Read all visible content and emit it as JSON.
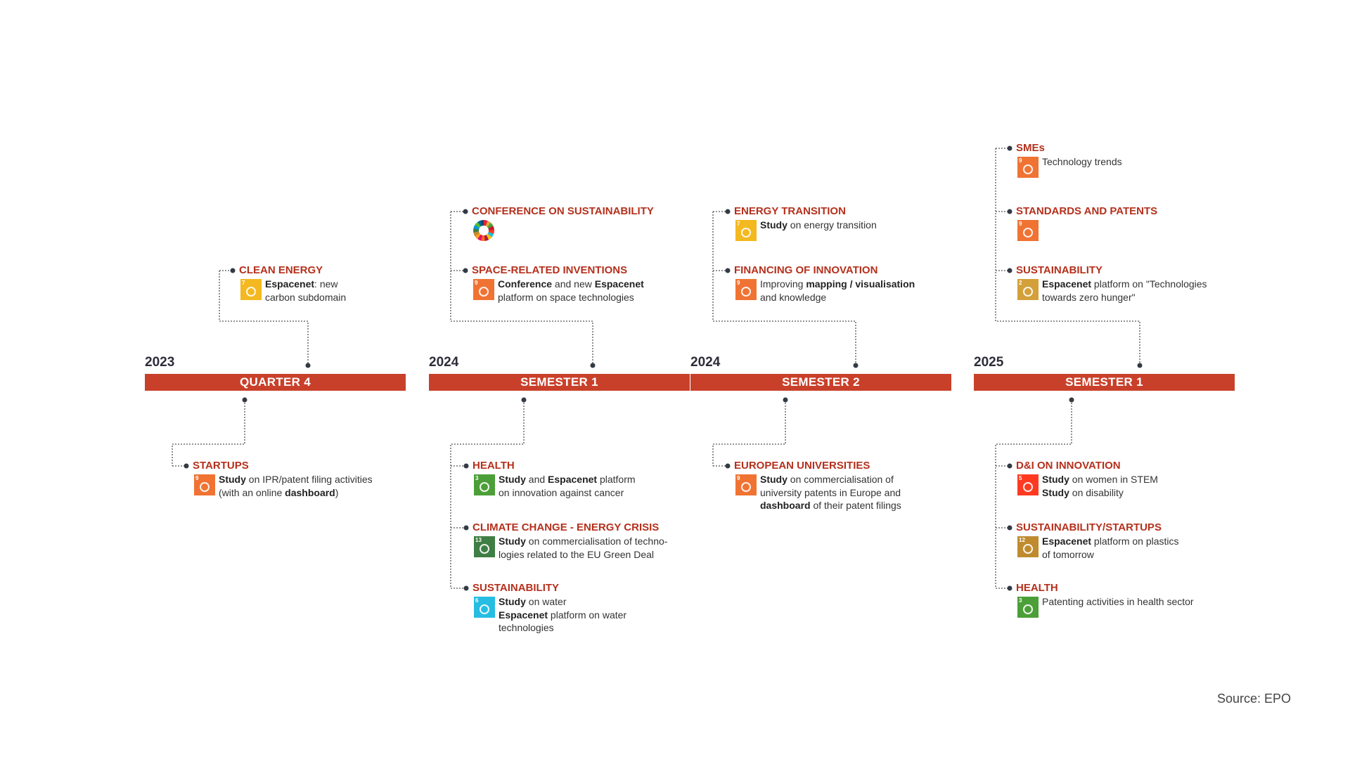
{
  "colors": {
    "bar": "#c9402a",
    "title": "#b5301c",
    "sdg7": "#f4b820",
    "sdg9": "#f07333",
    "sdg3": "#4c9f38",
    "sdg13": "#3f7e44",
    "sdg6": "#26bde2",
    "sdg5": "#ff3a21",
    "sdg12": "#bf8b2e",
    "sdg2": "#d3a03a"
  },
  "periods": [
    {
      "year": "2023",
      "label": "QUARTER 4"
    },
    {
      "year": "2024",
      "label": "SEMESTER 1"
    },
    {
      "year": "2024",
      "label": "SEMESTER 2"
    },
    {
      "year": "2025",
      "label": "SEMESTER 1"
    }
  ],
  "items": [
    {
      "title": "CLEAN ENERGY",
      "icon": "sdg7-affordable-clean-energy-icon",
      "iconNum": "7",
      "color": "sdg7",
      "lines": [
        [
          [
            "Espacenet",
            true
          ],
          [
            ": new",
            false
          ]
        ],
        [
          [
            "carbon subdomain",
            false
          ]
        ]
      ]
    },
    {
      "title": "STARTUPS",
      "icon": "sdg9-industry-innovation-icon",
      "iconNum": "9",
      "color": "sdg9",
      "lines": [
        [
          [
            "Study",
            true
          ],
          [
            " on IPR/patent filing activities",
            false
          ]
        ],
        [
          [
            "(with an online ",
            false
          ],
          [
            "dashboard",
            true
          ],
          [
            ")",
            false
          ]
        ]
      ]
    },
    {
      "title": "CONFERENCE ON SUSTAINABILITY",
      "icon": "sdg-wheel-icon",
      "iconNum": "",
      "color": "",
      "lines": []
    },
    {
      "title": "SPACE-RELATED INVENTIONS",
      "icon": "sdg9-industry-innovation-icon",
      "iconNum": "9",
      "color": "sdg9",
      "lines": [
        [
          [
            "Conference",
            true
          ],
          [
            " and new ",
            false
          ],
          [
            "Espacenet",
            true
          ]
        ],
        [
          [
            "platform on space technologies",
            false
          ]
        ]
      ]
    },
    {
      "title": "HEALTH",
      "icon": "sdg3-good-health-icon",
      "iconNum": "3",
      "color": "sdg3",
      "lines": [
        [
          [
            "Study",
            true
          ],
          [
            " and ",
            false
          ],
          [
            "Espacenet",
            true
          ],
          [
            " platform",
            false
          ]
        ],
        [
          [
            "on innovation against cancer",
            false
          ]
        ]
      ]
    },
    {
      "title": "CLIMATE CHANGE - ENERGY CRISIS",
      "icon": "sdg13-climate-action-icon",
      "iconNum": "13",
      "color": "sdg13",
      "lines": [
        [
          [
            "Study",
            true
          ],
          [
            " on commercialisation of techno-",
            false
          ]
        ],
        [
          [
            "logies related to the EU Green Deal",
            false
          ]
        ]
      ]
    },
    {
      "title": "SUSTAINABILITY",
      "icon": "sdg6-clean-water-icon",
      "iconNum": "6",
      "color": "sdg6",
      "lines": [
        [
          [
            "Study",
            true
          ],
          [
            " on water",
            false
          ]
        ],
        [
          [
            "Espacenet",
            true
          ],
          [
            " platform on water",
            false
          ]
        ],
        [
          [
            "technologies",
            false
          ]
        ]
      ]
    },
    {
      "title": "ENERGY TRANSITION",
      "icon": "sdg7-affordable-clean-energy-icon",
      "iconNum": "7",
      "color": "sdg7",
      "lines": [
        [
          [
            "Study",
            true
          ],
          [
            " on energy transition",
            false
          ]
        ]
      ]
    },
    {
      "title": "FINANCING OF INNOVATION",
      "icon": "sdg9-industry-innovation-icon",
      "iconNum": "9",
      "color": "sdg9",
      "lines": [
        [
          [
            "Improving ",
            false
          ],
          [
            "mapping / visualisation",
            true
          ]
        ],
        [
          [
            "and knowledge",
            false
          ]
        ]
      ]
    },
    {
      "title": "EUROPEAN UNIVERSITIES",
      "icon": "sdg9-industry-innovation-icon",
      "iconNum": "9",
      "color": "sdg9",
      "lines": [
        [
          [
            "Study",
            true
          ],
          [
            " on commercialisation of",
            false
          ]
        ],
        [
          [
            "university patents in Europe and",
            false
          ]
        ],
        [
          [
            "dashboard",
            true
          ],
          [
            " of their patent filings",
            false
          ]
        ]
      ]
    },
    {
      "title": "SMEs",
      "icon": "sdg9-industry-innovation-icon",
      "iconNum": "9",
      "color": "sdg9",
      "lines": [
        [
          [
            "Technology trends",
            false
          ]
        ]
      ]
    },
    {
      "title": "STANDARDS AND PATENTS",
      "icon": "sdg9-industry-innovation-icon",
      "iconNum": "9",
      "color": "sdg9",
      "lines": []
    },
    {
      "title": "SUSTAINABILITY",
      "icon": "sdg2-zero-hunger-icon",
      "iconNum": "2",
      "color": "sdg2",
      "lines": [
        [
          [
            "Espacenet",
            true
          ],
          [
            " platform on \"Technologies",
            false
          ]
        ],
        [
          [
            "towards zero hunger\"",
            false
          ]
        ]
      ]
    },
    {
      "title": "D&I ON INNOVATION",
      "icon": "sdg5-gender-equality-icon",
      "iconNum": "5",
      "color": "sdg5",
      "lines": [
        [
          [
            "Study",
            true
          ],
          [
            " on women in STEM",
            false
          ]
        ],
        [
          [
            "Study",
            true
          ],
          [
            " on disability",
            false
          ]
        ]
      ]
    },
    {
      "title": "SUSTAINABILITY/STARTUPS",
      "icon": "sdg12-responsible-consumption-icon",
      "iconNum": "12",
      "color": "sdg12",
      "lines": [
        [
          [
            "Espacenet",
            true
          ],
          [
            " platform on plastics",
            false
          ]
        ],
        [
          [
            "of tomorrow",
            false
          ]
        ]
      ]
    },
    {
      "title": "HEALTH",
      "icon": "sdg3-good-health-icon",
      "iconNum": "3",
      "color": "sdg3",
      "lines": [
        [
          [
            "Patenting activities in health sector",
            false
          ]
        ]
      ]
    }
  ],
  "source": "Source: EPO"
}
